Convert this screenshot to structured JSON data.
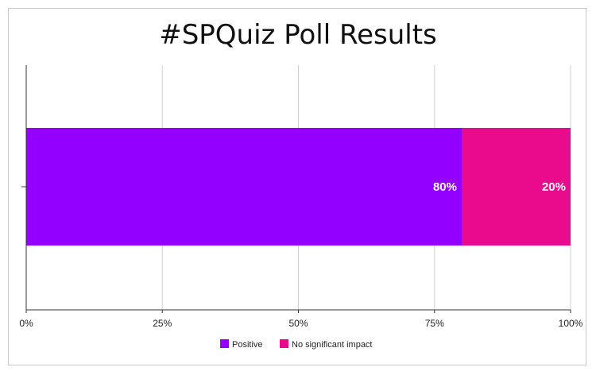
{
  "chart_data": {
    "type": "bar",
    "orientation": "horizontal",
    "stacked": true,
    "title": "#SPQuiz Poll Results",
    "xlabel": "",
    "ylabel": "",
    "xlim": [
      0,
      100
    ],
    "x_tick_labels": [
      "0%",
      "25%",
      "50%",
      "75%",
      "100%"
    ],
    "x_tick_values": [
      0,
      25,
      50,
      75,
      100
    ],
    "grid": true,
    "legend_position": "bottom",
    "categories": [
      ""
    ],
    "series": [
      {
        "name": "Positive",
        "values": [
          80
        ],
        "color": "#9300ff",
        "label": "80%"
      },
      {
        "name": "No significant impact",
        "values": [
          20
        ],
        "color": "#ea0b8c",
        "label": "20%"
      }
    ]
  }
}
